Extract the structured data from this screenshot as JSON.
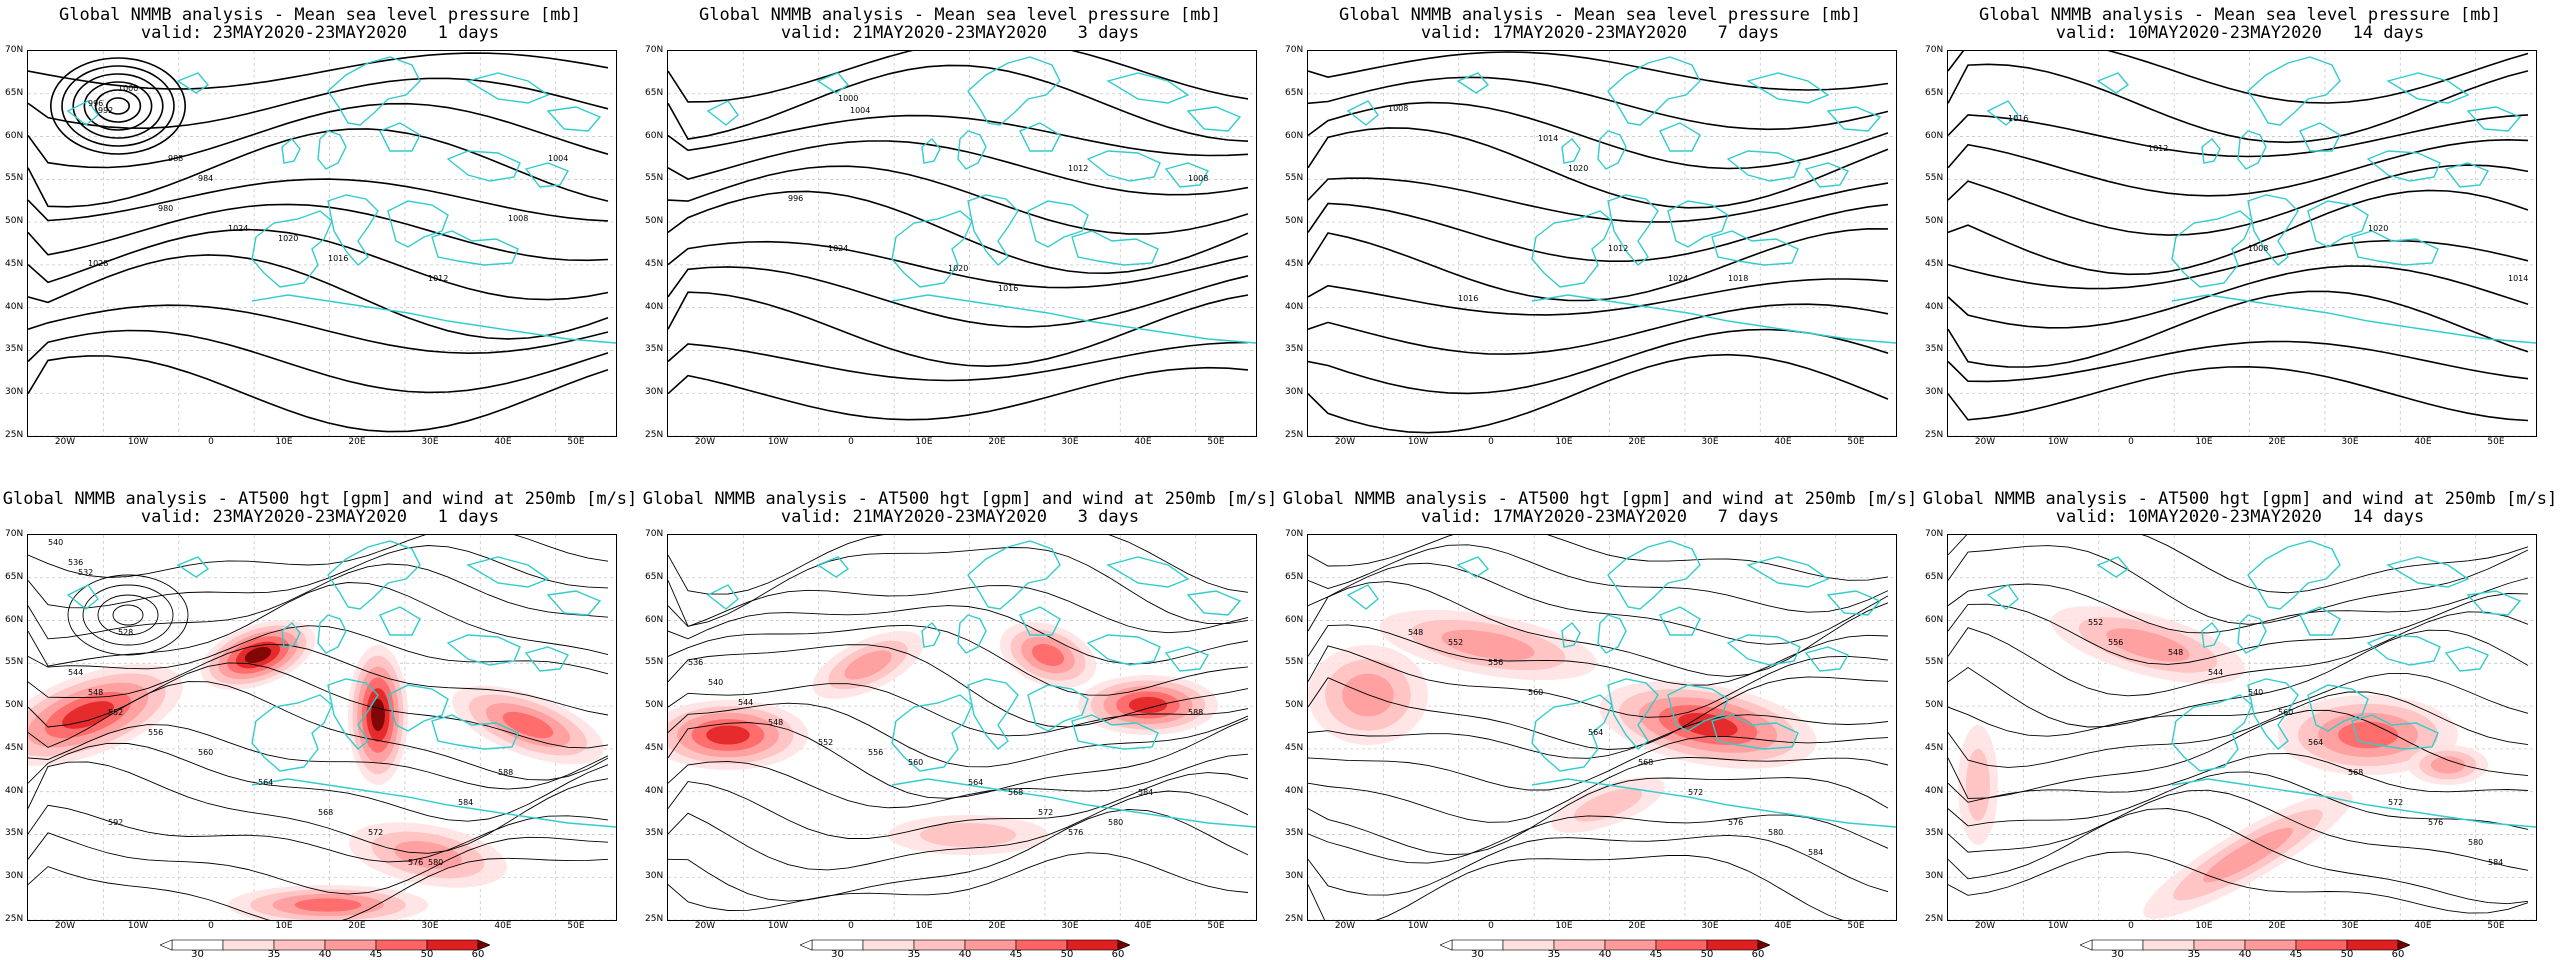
{
  "colors": {
    "coast": "#33cccc",
    "contour": "#000000",
    "grid": "#c8c8c8",
    "jet_levels": [
      "#ffffff",
      "#ffe0e0",
      "#ffc0c0",
      "#ff9a9a",
      "#ff6464",
      "#e02020",
      "#700000"
    ]
  },
  "axes": {
    "lat_labels": [
      "70N",
      "65N",
      "60N",
      "55N",
      "50N",
      "45N",
      "40N",
      "35N",
      "30N",
      "25N"
    ],
    "lon_labels": [
      "20W",
      "10W",
      "0",
      "10E",
      "20E",
      "30E",
      "40E",
      "50E"
    ]
  },
  "colorbar": {
    "labels": [
      "30",
      "35",
      "40",
      "45",
      "50",
      "60"
    ]
  },
  "rows": [
    {
      "title": "Global NMMB analysis - Mean sea level pressure [mb]",
      "panels": [
        {
          "valid": "valid: 23MAY2020-23MAY2020   1 days",
          "contour_labels": [
            "1000",
            "996",
            "992",
            "988",
            "984",
            "980",
            "1024",
            "1020",
            "1016",
            "1012",
            "1008",
            "1004",
            "1028"
          ]
        },
        {
          "valid": "valid: 21MAY2020-23MAY2020   3 days",
          "contour_labels": [
            "1000",
            "996",
            "1024",
            "1020",
            "1016",
            "1012",
            "1008",
            "1004"
          ]
        },
        {
          "valid": "valid: 17MAY2020-23MAY2020   7 days",
          "contour_labels": [
            "1008",
            "1014",
            "1020",
            "1016",
            "1012",
            "1024",
            "1018"
          ]
        },
        {
          "valid": "valid: 10MAY2020-23MAY2020   14 days",
          "contour_labels": [
            "1016",
            "1012",
            "1008",
            "1020",
            "1014"
          ]
        }
      ]
    },
    {
      "title": "Global NMMB analysis - AT500 hgt [gpm] and wind at 250mb [m/s]",
      "panels": [
        {
          "valid": "valid: 23MAY2020-23MAY2020   1 days",
          "contour_labels": [
            "540",
            "536",
            "532",
            "528",
            "544",
            "548",
            "552",
            "556",
            "560",
            "564",
            "568",
            "572",
            "576",
            "580",
            "584",
            "588",
            "592"
          ]
        },
        {
          "valid": "valid: 21MAY2020-23MAY2020   3 days",
          "contour_labels": [
            "536",
            "540",
            "544",
            "548",
            "552",
            "556",
            "560",
            "564",
            "568",
            "572",
            "576",
            "580",
            "584",
            "588"
          ]
        },
        {
          "valid": "valid: 17MAY2020-23MAY2020   7 days",
          "contour_labels": [
            "548",
            "552",
            "556",
            "560",
            "564",
            "568",
            "572",
            "576",
            "580",
            "584"
          ]
        },
        {
          "valid": "valid: 10MAY2020-23MAY2020   14 days",
          "contour_labels": [
            "552",
            "556",
            "548",
            "544",
            "540",
            "560",
            "564",
            "568",
            "572",
            "576",
            "580",
            "584"
          ]
        }
      ]
    }
  ]
}
